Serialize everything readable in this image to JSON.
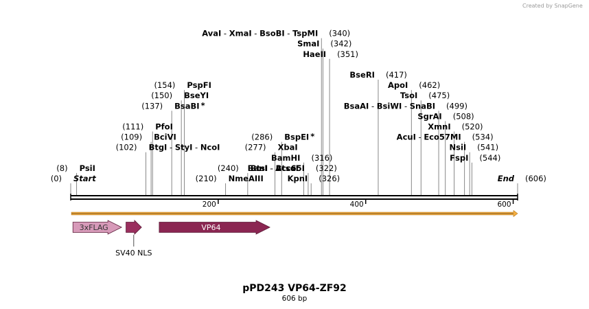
{
  "credit": "Created by SnapGene",
  "title": "pPD243 VP64-ZF92",
  "subtitle": "606 bp",
  "sequence_length": 606,
  "axis_ticks": [
    {
      "pos": 200,
      "label": "200"
    },
    {
      "pos": 400,
      "label": "400"
    },
    {
      "pos": 600,
      "label": "600"
    }
  ],
  "sites": [
    {
      "id": "start",
      "pos": 0,
      "row": 0,
      "side": "right",
      "items": [
        {
          "text": "Start",
          "style": "bi"
        }
      ],
      "num": "(0)"
    },
    {
      "id": "psii",
      "pos": 8,
      "row": 1,
      "side": "right",
      "items": [
        {
          "text": "PsiI",
          "style": "b"
        }
      ],
      "num": "(8)"
    },
    {
      "id": "btgi",
      "pos": 102,
      "row": 3,
      "side": "right",
      "items": [
        {
          "text": "BtgI",
          "style": "b"
        },
        {
          "text": "StyI",
          "style": "b"
        },
        {
          "text": "NcoI",
          "style": "b"
        }
      ],
      "num": "(102)"
    },
    {
      "id": "bcivi",
      "pos": 109,
      "row": 4,
      "side": "right",
      "items": [
        {
          "text": "BciVI",
          "style": "b"
        }
      ],
      "num": "(109)"
    },
    {
      "id": "pfoi",
      "pos": 111,
      "row": 5,
      "side": "right",
      "items": [
        {
          "text": "PfoI",
          "style": "b"
        }
      ],
      "num": "(111)"
    },
    {
      "id": "bsabi",
      "pos": 137,
      "row": 7,
      "side": "right",
      "items": [
        {
          "text": "BsaBI",
          "style": "b",
          "star": true
        }
      ],
      "num": "(137)"
    },
    {
      "id": "bseyi",
      "pos": 150,
      "row": 8,
      "side": "right",
      "items": [
        {
          "text": "BseYI",
          "style": "b"
        }
      ],
      "num": "(150)"
    },
    {
      "id": "pspfi",
      "pos": 154,
      "row": 9,
      "side": "right",
      "items": [
        {
          "text": "PspFI",
          "style": "b"
        }
      ],
      "num": "(154)"
    },
    {
      "id": "nmeaiii",
      "pos": 210,
      "row": 0,
      "side": "right",
      "items": [
        {
          "text": "NmeAIII",
          "style": "b"
        }
      ],
      "num": "(210)"
    },
    {
      "id": "btsi",
      "pos": 240,
      "row": 1,
      "side": "right",
      "items": [
        {
          "text": "BtsI",
          "style": "b"
        },
        {
          "text": "BtsαI",
          "style": "b"
        }
      ],
      "num": "(240)"
    },
    {
      "id": "xbai",
      "pos": 277,
      "row": 3,
      "side": "right",
      "items": [
        {
          "text": "XbaI",
          "style": "b"
        }
      ],
      "num": "(277)"
    },
    {
      "id": "bspei",
      "pos": 286,
      "row": 4,
      "side": "right",
      "items": [
        {
          "text": "BspEI",
          "style": "b",
          "star": true
        }
      ],
      "num": "(286)"
    },
    {
      "id": "kpni",
      "pos": 326,
      "row": 0,
      "side": "left",
      "items": [
        {
          "text": "KpnI",
          "style": "b"
        }
      ],
      "num": "(326)"
    },
    {
      "id": "bani",
      "pos": 322,
      "row": 1,
      "side": "left",
      "items": [
        {
          "text": "BanI",
          "style": "b"
        },
        {
          "text": "Acc65I",
          "style": "b"
        }
      ],
      "num": "(322)"
    },
    {
      "id": "bamhi",
      "pos": 316,
      "row": 2,
      "side": "left",
      "items": [
        {
          "text": "BamHI",
          "style": "b"
        }
      ],
      "num": "(316)"
    },
    {
      "id": "haeii",
      "pos": 351,
      "row": 12,
      "side": "left",
      "items": [
        {
          "text": "HaeII",
          "style": "b"
        }
      ],
      "num": "(351)"
    },
    {
      "id": "smai",
      "pos": 342,
      "row": 13,
      "side": "left",
      "items": [
        {
          "text": "SmaI",
          "style": "b"
        }
      ],
      "num": "(342)"
    },
    {
      "id": "avai",
      "pos": 340,
      "row": 14,
      "side": "left",
      "items": [
        {
          "text": "AvaI",
          "style": "b"
        },
        {
          "text": "XmaI",
          "style": "b"
        },
        {
          "text": "BsoBI",
          "style": "b"
        },
        {
          "text": "TspMI",
          "style": "b"
        }
      ],
      "num": "(340)"
    },
    {
      "id": "bseri",
      "pos": 417,
      "row": 10,
      "side": "left",
      "items": [
        {
          "text": "BseRI",
          "style": "b"
        }
      ],
      "num": "(417)"
    },
    {
      "id": "apoi",
      "pos": 462,
      "row": 9,
      "side": "left",
      "items": [
        {
          "text": "ApoI",
          "style": "b"
        }
      ],
      "num": "(462)"
    },
    {
      "id": "tsoi",
      "pos": 475,
      "row": 8,
      "side": "left",
      "items": [
        {
          "text": "TsoI",
          "style": "b"
        }
      ],
      "num": "(475)"
    },
    {
      "id": "bsaai",
      "pos": 499,
      "row": 7,
      "side": "left",
      "items": [
        {
          "text": "BsaAI",
          "style": "b"
        },
        {
          "text": "BsiWI",
          "style": "b"
        },
        {
          "text": "SnaBI",
          "style": "b"
        }
      ],
      "num": "(499)"
    },
    {
      "id": "sgrai",
      "pos": 508,
      "row": 6,
      "side": "left",
      "items": [
        {
          "text": "SgrAI",
          "style": "b"
        }
      ],
      "num": "(508)"
    },
    {
      "id": "xmni",
      "pos": 520,
      "row": 5,
      "side": "left",
      "items": [
        {
          "text": "XmnI",
          "style": "b"
        }
      ],
      "num": "(520)"
    },
    {
      "id": "acui",
      "pos": 534,
      "row": 4,
      "side": "left",
      "items": [
        {
          "text": "AcuI",
          "style": "b"
        },
        {
          "text": "Eco57MI",
          "style": "b"
        }
      ],
      "num": "(534)"
    },
    {
      "id": "nsii",
      "pos": 541,
      "row": 3,
      "side": "left",
      "items": [
        {
          "text": "NsiI",
          "style": "b"
        }
      ],
      "num": "(541)"
    },
    {
      "id": "fspi",
      "pos": 544,
      "row": 2,
      "side": "left",
      "items": [
        {
          "text": "FspI",
          "style": "b"
        }
      ],
      "num": "(544)"
    },
    {
      "id": "end",
      "pos": 606,
      "row": 0,
      "side": "left",
      "items": [
        {
          "text": "End",
          "style": "bi"
        }
      ],
      "num": "(606)"
    }
  ],
  "orf": {
    "start": 1,
    "end": 606,
    "color": "#f3ad40"
  },
  "features": [
    {
      "id": "3xflag",
      "label": "3xFLAG",
      "start": 3,
      "end": 69,
      "color": "#d79ab9",
      "text_color": "#333333"
    },
    {
      "id": "sv40-nls",
      "label": "SV40 NLS",
      "start": 75,
      "end": 96,
      "color": "#9a2f5e",
      "text_color": "#000000",
      "label_below": true
    },
    {
      "id": "vp64",
      "label": "VP64",
      "start": 120,
      "end": 270,
      "color": "#8b2652",
      "text_color": "#ffffff"
    }
  ]
}
